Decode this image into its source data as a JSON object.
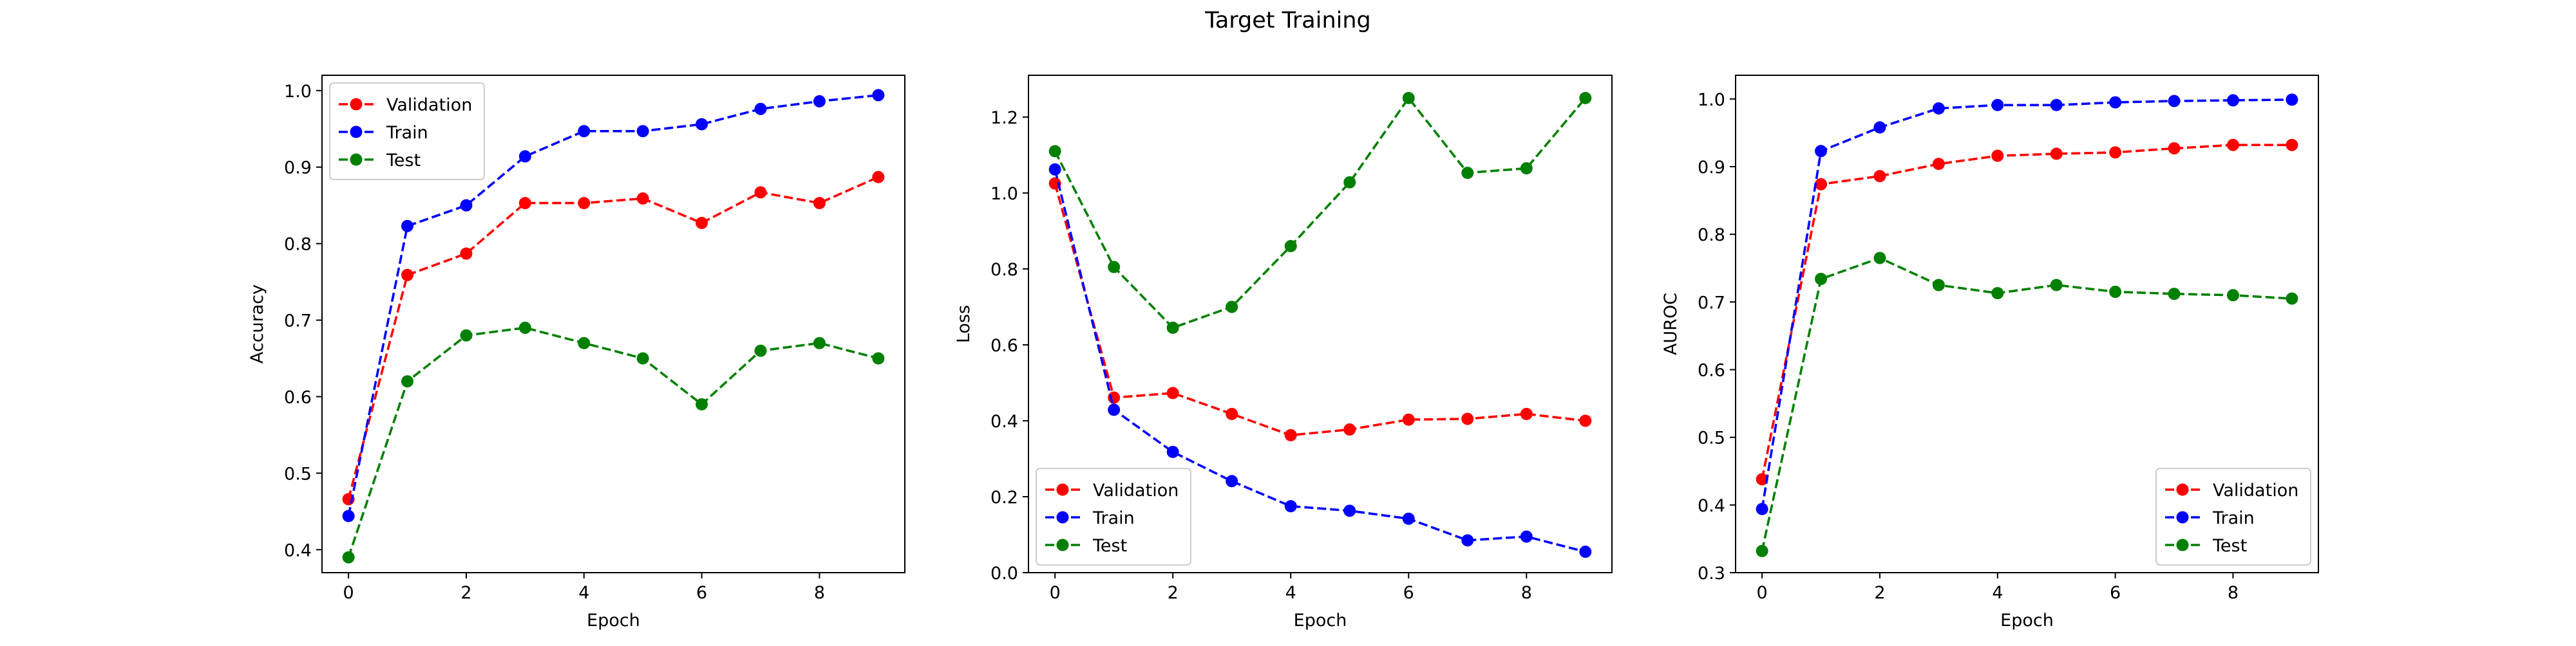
{
  "figure": {
    "title": "Target Training"
  },
  "series_colors": {
    "Validation": "#ff0000",
    "Train": "#0000ff",
    "Test": "#008000"
  },
  "chart_data": [
    {
      "type": "line",
      "title": "",
      "xlabel": "Epoch",
      "ylabel": "Accuracy",
      "x": [
        0,
        1,
        2,
        3,
        4,
        5,
        6,
        7,
        8,
        9
      ],
      "xlim": [
        -0.45,
        9.45
      ],
      "ylim": [
        0.37,
        1.02
      ],
      "xticks": [
        0,
        2,
        4,
        6,
        8
      ],
      "yticks": [
        0.4,
        0.5,
        0.6,
        0.7,
        0.8,
        0.9,
        1.0
      ],
      "ytick_labels": [
        "0.4",
        "0.5",
        "0.6",
        "0.7",
        "0.8",
        "0.9",
        "1.0"
      ],
      "legend_position": "upper left",
      "grid": false,
      "series": [
        {
          "name": "Validation",
          "color": "#ff0000",
          "style": "dashed, circle markers",
          "values": [
            0.466,
            0.759,
            0.787,
            0.853,
            0.853,
            0.859,
            0.827,
            0.867,
            0.853,
            0.887
          ]
        },
        {
          "name": "Train",
          "color": "#0000ff",
          "style": "dashed, circle markers",
          "values": [
            0.444,
            0.823,
            0.85,
            0.914,
            0.947,
            0.947,
            0.956,
            0.976,
            0.986,
            0.994
          ]
        },
        {
          "name": "Test",
          "color": "#008000",
          "style": "dashed, circle markers",
          "values": [
            0.39,
            0.62,
            0.68,
            0.69,
            0.67,
            0.65,
            0.59,
            0.66,
            0.67,
            0.65
          ]
        }
      ]
    },
    {
      "type": "line",
      "title": "",
      "xlabel": "Epoch",
      "ylabel": "Loss",
      "x": [
        0,
        1,
        2,
        3,
        4,
        5,
        6,
        7,
        8,
        9
      ],
      "xlim": [
        -0.45,
        9.45
      ],
      "ylim": [
        0.0,
        1.31
      ],
      "xticks": [
        0,
        2,
        4,
        6,
        8
      ],
      "yticks": [
        0.0,
        0.2,
        0.4,
        0.6,
        0.8,
        1.0,
        1.2
      ],
      "ytick_labels": [
        "0.0",
        "0.2",
        "0.4",
        "0.6",
        "0.8",
        "1.0",
        "1.2"
      ],
      "legend_position": "lower left",
      "grid": false,
      "series": [
        {
          "name": "Validation",
          "color": "#ff0000",
          "style": "dashed, circle markers",
          "values": [
            1.025,
            0.461,
            0.473,
            0.418,
            0.362,
            0.377,
            0.403,
            0.405,
            0.418,
            0.4
          ]
        },
        {
          "name": "Train",
          "color": "#0000ff",
          "style": "dashed, circle markers",
          "values": [
            1.062,
            0.429,
            0.318,
            0.241,
            0.175,
            0.163,
            0.142,
            0.085,
            0.095,
            0.055
          ]
        },
        {
          "name": "Test",
          "color": "#008000",
          "style": "dashed, circle markers",
          "values": [
            1.11,
            0.805,
            0.645,
            0.7,
            0.86,
            1.028,
            1.25,
            1.053,
            1.065,
            1.25
          ]
        }
      ]
    },
    {
      "type": "line",
      "title": "",
      "xlabel": "Epoch",
      "ylabel": "AUROC",
      "x": [
        0,
        1,
        2,
        3,
        4,
        5,
        6,
        7,
        8,
        9
      ],
      "xlim": [
        -0.45,
        9.45
      ],
      "ylim": [
        0.3,
        1.035
      ],
      "xticks": [
        0,
        2,
        4,
        6,
        8
      ],
      "yticks": [
        0.3,
        0.4,
        0.5,
        0.6,
        0.7,
        0.8,
        0.9,
        1.0
      ],
      "ytick_labels": [
        "0.3",
        "0.4",
        "0.5",
        "0.6",
        "0.7",
        "0.8",
        "0.9",
        "1.0"
      ],
      "legend_position": "lower right",
      "grid": false,
      "series": [
        {
          "name": "Validation",
          "color": "#ff0000",
          "style": "dashed, circle markers",
          "values": [
            0.438,
            0.874,
            0.886,
            0.904,
            0.916,
            0.919,
            0.921,
            0.927,
            0.932,
            0.932
          ]
        },
        {
          "name": "Train",
          "color": "#0000ff",
          "style": "dashed, circle markers",
          "values": [
            0.394,
            0.923,
            0.958,
            0.986,
            0.991,
            0.991,
            0.995,
            0.997,
            0.998,
            0.999
          ]
        },
        {
          "name": "Test",
          "color": "#008000",
          "style": "dashed, circle markers",
          "values": [
            0.332,
            0.734,
            0.765,
            0.725,
            0.713,
            0.725,
            0.715,
            0.712,
            0.71,
            0.705
          ]
        }
      ]
    }
  ]
}
